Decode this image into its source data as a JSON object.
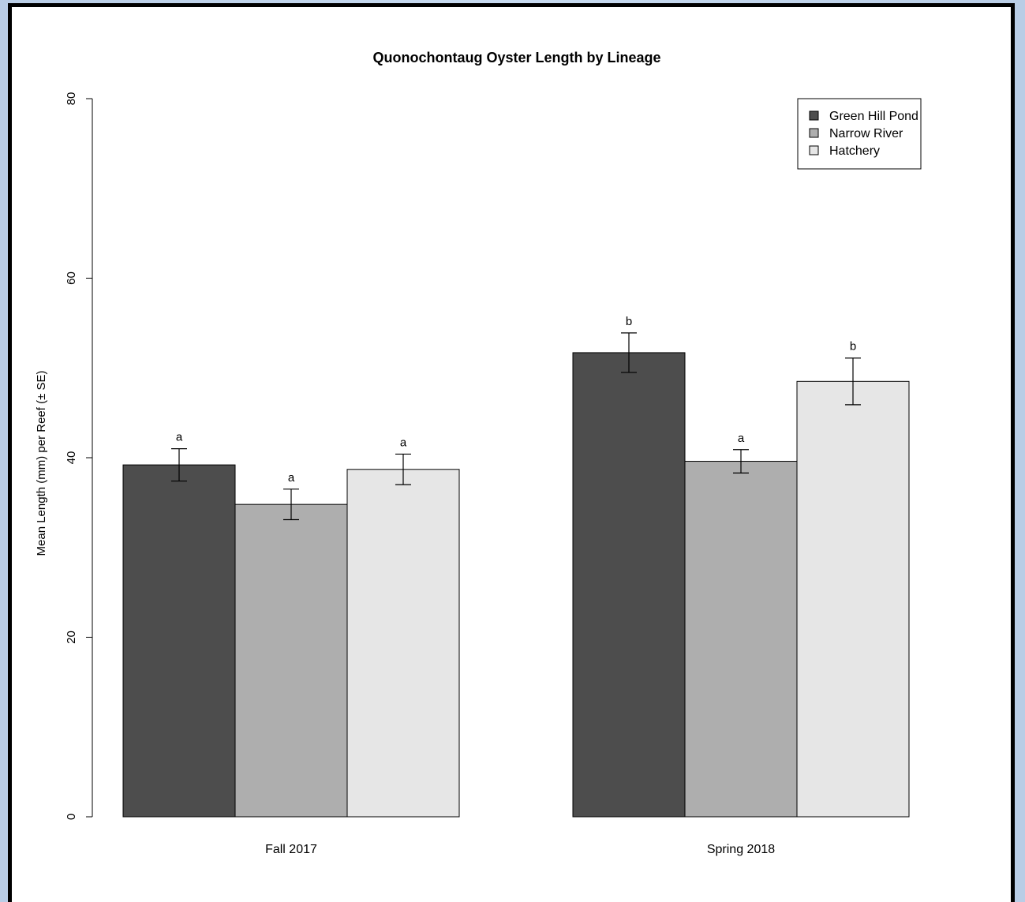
{
  "chart_data": {
    "type": "bar",
    "title": "Quonochontaug Oyster Length by Lineage",
    "xlabel": "",
    "ylabel": "Mean Length (mm) per Reef (± SE)",
    "ylim": [
      0,
      80
    ],
    "yticks": [
      0,
      20,
      40,
      60,
      80
    ],
    "categories": [
      "Fall 2017",
      "Spring 2018"
    ],
    "series": [
      {
        "name": "Green Hill Pond",
        "color": "#4d4d4d",
        "values": [
          39.2,
          51.7
        ],
        "se": [
          1.8,
          2.2
        ],
        "letters": [
          "a",
          "b"
        ]
      },
      {
        "name": "Narrow River",
        "color": "#aeaeae",
        "values": [
          34.8,
          39.6
        ],
        "se": [
          1.7,
          1.3
        ],
        "letters": [
          "a",
          "a"
        ]
      },
      {
        "name": "Hatchery",
        "color": "#e6e6e6",
        "values": [
          38.7,
          48.5
        ],
        "se": [
          1.7,
          2.6
        ],
        "letters": [
          "a",
          "b"
        ]
      }
    ],
    "legend_position": "top-right",
    "grid": false
  }
}
